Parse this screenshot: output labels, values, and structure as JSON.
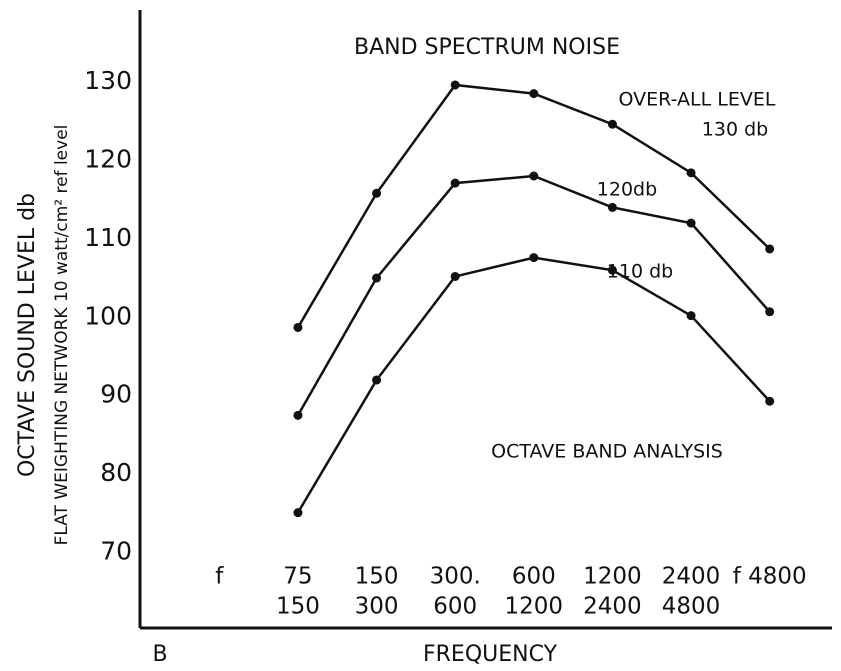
{
  "chart_data": {
    "type": "line",
    "title": "BAND SPECTRUM NOISE",
    "x_label": "FREQUENCY",
    "x_corner_label": "B",
    "y_label": "OCTAVE   SOUND LEVEL  db",
    "y_sublabel": "FLAT WEIGHTING NETWORK  10 watt/cm² ref level",
    "annotations": [
      "OVER-ALL LEVEL",
      "OCTAVE BAND ANALYSIS"
    ],
    "categories": [
      [
        "f"
      ],
      [
        "75",
        "150"
      ],
      [
        "150",
        "300"
      ],
      [
        "300.",
        "600"
      ],
      [
        "600",
        "1200"
      ],
      [
        "1200",
        "2400"
      ],
      [
        "2400",
        "4800"
      ],
      [
        "f 4800"
      ]
    ],
    "series": [
      {
        "name": "130 db",
        "color": "#111111",
        "values": [
          null,
          98.7,
          115.8,
          129.6,
          128.5,
          124.6,
          118.4,
          108.7
        ]
      },
      {
        "name": "120db",
        "color": "#111111",
        "values": [
          null,
          87.5,
          105,
          117.1,
          118,
          114,
          112,
          100.7
        ]
      },
      {
        "name": "110 db",
        "color": "#111111",
        "values": [
          null,
          75.1,
          92,
          105.2,
          107.6,
          106,
          100.2,
          89.3
        ]
      }
    ],
    "ylim": [
      60.4,
      138.9
    ],
    "yticks": [
      70,
      80,
      90,
      100,
      110,
      120,
      130
    ],
    "grid": false
  }
}
